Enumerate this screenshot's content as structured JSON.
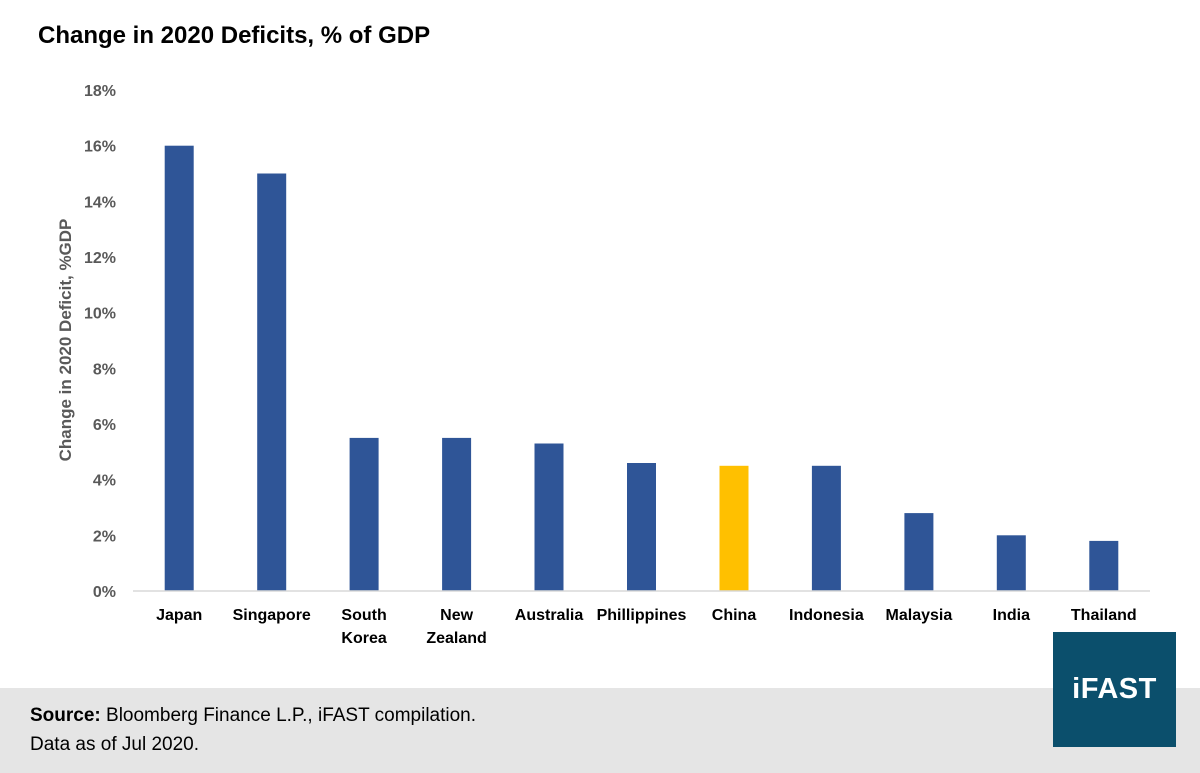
{
  "chart_data": {
    "type": "bar",
    "title": "Change in 2020 Deficits, % of GDP",
    "ylabel": "Change in 2020 Deficit, %GDP",
    "xlabel": "",
    "ylim": [
      0,
      18
    ],
    "y_ticks": [
      "0%",
      "2%",
      "4%",
      "6%",
      "8%",
      "10%",
      "12%",
      "14%",
      "16%",
      "18%"
    ],
    "y_tick_values": [
      0,
      2,
      4,
      6,
      8,
      10,
      12,
      14,
      16,
      18
    ],
    "categories": [
      "Japan",
      "Singapore",
      "South Korea",
      "New Zealand",
      "Australia",
      "Phillippines",
      "China",
      "Indonesia",
      "Malaysia",
      "India",
      "Thailand"
    ],
    "category_lines": [
      [
        "Japan"
      ],
      [
        "Singapore"
      ],
      [
        "South",
        "Korea"
      ],
      [
        "New",
        "Zealand"
      ],
      [
        "Australia"
      ],
      [
        "Phillippines"
      ],
      [
        "China"
      ],
      [
        "Indonesia"
      ],
      [
        "Malaysia"
      ],
      [
        "India"
      ],
      [
        "Thailand"
      ]
    ],
    "values": [
      16,
      15,
      5.5,
      5.5,
      5.3,
      4.6,
      4.5,
      4.5,
      2.8,
      2.0,
      1.8
    ],
    "colors": {
      "default": "#2f5597",
      "highlight": "#ffc000",
      "highlight_category": "China",
      "axis": "#d9d9d9",
      "tick_text": "#595959"
    },
    "grid": false,
    "legend": "none"
  },
  "footer": {
    "source_label": "Source:",
    "source_text": "Bloomberg Finance L.P., iFAST compilation.",
    "date_text": "Data as of Jul 2020."
  },
  "logo": {
    "text": "iFAST"
  }
}
